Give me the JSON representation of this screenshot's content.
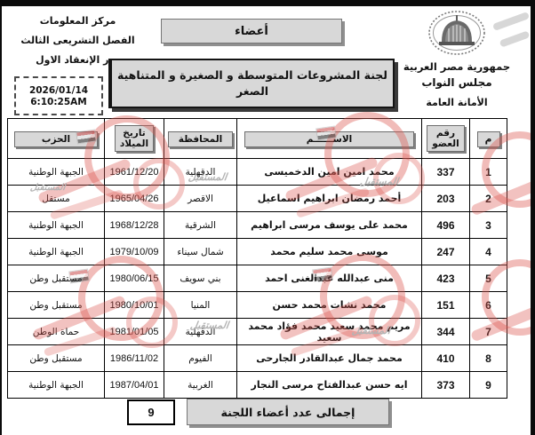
{
  "header": {
    "left": {
      "org": "مركز المعلومات",
      "term": "الفصل التشريعى الثالث",
      "session": "دور الإنعقاد الاول",
      "date": "2026/01/14",
      "time": "6:10:25AM"
    },
    "center": {
      "members_label": "أعضاء",
      "title_line1": "لجنة المشروعات المتوسطة و الصغيرة و المتناهية",
      "title_line2": "الصغر"
    },
    "right": {
      "logo": "parliament-dome-emblem",
      "country": "جمهورية مصر العربية",
      "council": "مجلس النواب",
      "secretariat": "الأمانة العامة"
    }
  },
  "table": {
    "headers": {
      "index": "م",
      "member_no_line1": "رقم",
      "member_no_line2": "العضو",
      "name": "الاســــــم",
      "governorate": "المحافظة",
      "birth_line1": "تاريخ",
      "birth_line2": "الميلاد",
      "party": "الحزب"
    },
    "rows": [
      {
        "no": "1",
        "member_no": "337",
        "name": "محمد امين امين الدخميسى",
        "governorate": "الدقهلية",
        "birth_date": "1961/12/20",
        "party": "الجبهة الوطنية"
      },
      {
        "no": "2",
        "member_no": "203",
        "name": "أحمد رمضان ابراهيم اسماعيل",
        "governorate": "الاقصر",
        "birth_date": "1965/04/26",
        "party": "مستقل"
      },
      {
        "no": "3",
        "member_no": "496",
        "name": "محمد على يوسف مرسى ابراهيم",
        "governorate": "الشرقية",
        "birth_date": "1968/12/28",
        "party": "الجبهة الوطنية"
      },
      {
        "no": "4",
        "member_no": "247",
        "name": "موسى محمد سليم محمد",
        "governorate": "شمال سيناء",
        "birth_date": "1979/10/09",
        "party": "الجبهة الوطنية"
      },
      {
        "no": "5",
        "member_no": "423",
        "name": "منى عبدالله عبدالغنى احمد",
        "governorate": "بني سويف",
        "birth_date": "1980/06/15",
        "party": "مستقبل وطن"
      },
      {
        "no": "6",
        "member_no": "151",
        "name": "محمد نشات محمد حسن",
        "governorate": "المنيا",
        "birth_date": "1980/10/01",
        "party": "مستقبل وطن"
      },
      {
        "no": "7",
        "member_no": "344",
        "name": "مريم محمد سعيد محمد فؤاد محمد سعيد",
        "governorate": "الدقهلية",
        "birth_date": "1981/01/05",
        "party": "حماة الوطن"
      },
      {
        "no": "8",
        "member_no": "410",
        "name": "محمد جمال عبدالقادر الجارحى",
        "governorate": "الفيوم",
        "birth_date": "1986/11/02",
        "party": "مستقبل وطن"
      },
      {
        "no": "9",
        "member_no": "373",
        "name": "ايه حسن عبدالفتاح مرسى النجار",
        "governorate": "الغربية",
        "birth_date": "1987/04/01",
        "party": "الجبهة الوطنية"
      }
    ]
  },
  "footer": {
    "total_label": "إجمالى عدد أعضاء اللجنة",
    "total_value": "9"
  },
  "watermark": {
    "text": "المستقبل",
    "red": "#dc5750",
    "gray": "#b3b3b3"
  }
}
